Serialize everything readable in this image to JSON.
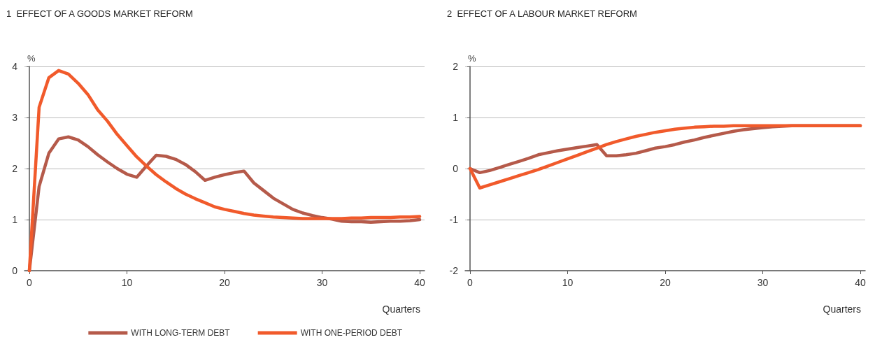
{
  "chart_data": [
    {
      "type": "line",
      "title": "1  EFFECT OF A GOODS MARKET REFORM",
      "xlabel": "Quarters",
      "ylabel": "%",
      "x": [
        0,
        1,
        2,
        3,
        4,
        5,
        6,
        7,
        8,
        9,
        10,
        11,
        12,
        13,
        14,
        15,
        16,
        17,
        18,
        19,
        20,
        21,
        22,
        23,
        24,
        25,
        26,
        27,
        28,
        29,
        30,
        31,
        32,
        33,
        34,
        35,
        36,
        37,
        38,
        39,
        40
      ],
      "series": [
        {
          "name": "WITH LONG-TERM DEBT",
          "color": "#b55a4a",
          "values": [
            0,
            1.65,
            2.3,
            2.58,
            2.62,
            2.56,
            2.43,
            2.27,
            2.13,
            2.0,
            1.89,
            1.83,
            2.05,
            2.26,
            2.24,
            2.18,
            2.08,
            1.94,
            1.77,
            1.83,
            1.88,
            1.92,
            1.95,
            1.72,
            1.57,
            1.42,
            1.31,
            1.2,
            1.13,
            1.08,
            1.04,
            1.01,
            0.97,
            0.96,
            0.96,
            0.95,
            0.96,
            0.97,
            0.97,
            0.98,
            1.0
          ]
        },
        {
          "name": "WITH ONE-PERIOD DEBT",
          "color": "#f15a2b",
          "values": [
            0,
            3.2,
            3.78,
            3.92,
            3.85,
            3.67,
            3.45,
            3.15,
            2.93,
            2.67,
            2.45,
            2.23,
            2.05,
            1.88,
            1.74,
            1.61,
            1.5,
            1.41,
            1.33,
            1.25,
            1.2,
            1.16,
            1.12,
            1.09,
            1.07,
            1.05,
            1.04,
            1.03,
            1.02,
            1.02,
            1.02,
            1.02,
            1.02,
            1.03,
            1.03,
            1.04,
            1.04,
            1.04,
            1.05,
            1.05,
            1.06
          ]
        }
      ],
      "xlim": [
        -0.5,
        40.5
      ],
      "xticks": [
        0,
        10,
        20,
        30,
        40
      ],
      "ylim": [
        0,
        4
      ],
      "yticks": [
        0,
        1,
        2,
        3,
        4
      ],
      "grid": "y",
      "legend": "bottom right",
      "marker": "none",
      "line_style": "solid"
    },
    {
      "type": "line",
      "title": "2  EFFECT OF A LABOUR MARKET REFORM",
      "xlabel": "Quarters",
      "ylabel": "%",
      "x": [
        0,
        1,
        2,
        3,
        4,
        5,
        6,
        7,
        8,
        9,
        10,
        11,
        12,
        13,
        14,
        15,
        16,
        17,
        18,
        19,
        20,
        21,
        22,
        23,
        24,
        25,
        26,
        27,
        28,
        29,
        30,
        31,
        32,
        33,
        34,
        35,
        36,
        37,
        38,
        39,
        40
      ],
      "series": [
        {
          "name": "WITH LONG-TERM DEBT",
          "color": "#b55a4a",
          "values": [
            0,
            -0.08,
            -0.04,
            0.02,
            0.08,
            0.14,
            0.2,
            0.27,
            0.31,
            0.35,
            0.38,
            0.41,
            0.44,
            0.47,
            0.25,
            0.25,
            0.27,
            0.3,
            0.35,
            0.4,
            0.43,
            0.47,
            0.52,
            0.56,
            0.61,
            0.65,
            0.69,
            0.73,
            0.76,
            0.78,
            0.8,
            0.82,
            0.83,
            0.84,
            0.84,
            0.84,
            0.84,
            0.84,
            0.84,
            0.84,
            0.84
          ]
        },
        {
          "name": "WITH ONE-PERIOD DEBT",
          "color": "#f15a2b",
          "values": [
            0,
            -0.38,
            -0.32,
            -0.26,
            -0.2,
            -0.14,
            -0.08,
            -0.02,
            0.05,
            0.12,
            0.19,
            0.26,
            0.33,
            0.4,
            0.47,
            0.53,
            0.58,
            0.63,
            0.67,
            0.71,
            0.74,
            0.77,
            0.79,
            0.81,
            0.82,
            0.83,
            0.83,
            0.84,
            0.84,
            0.84,
            0.84,
            0.84,
            0.84,
            0.84,
            0.84,
            0.84,
            0.84,
            0.84,
            0.84,
            0.84,
            0.84
          ]
        }
      ],
      "xlim": [
        -0.5,
        40.5
      ],
      "xticks": [
        0,
        10,
        20,
        30,
        40
      ],
      "ylim": [
        -2,
        2
      ],
      "yticks": [
        -2,
        -1,
        0,
        1,
        2
      ],
      "grid": "y",
      "legend": "bottom left",
      "marker": "none",
      "line_style": "solid"
    }
  ]
}
